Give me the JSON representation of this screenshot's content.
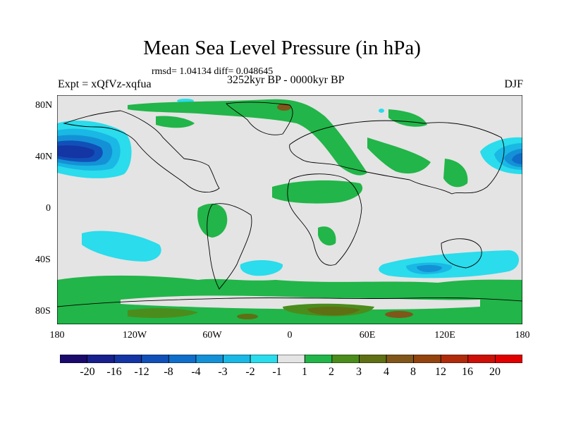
{
  "title": "Mean Sea Level Pressure (in hPa)",
  "stats": "rmsd= 1.04134 diff= 0.048645",
  "expt": "Expt = xQfVz-xqfua",
  "period": "3252kyr BP - 0000kyr BP",
  "season": "DJF",
  "lat_labels": [
    "80N",
    "40N",
    "0",
    "40S",
    "80S"
  ],
  "lon_labels": [
    "180",
    "120W",
    "60W",
    "0",
    "60E",
    "120E",
    "180"
  ],
  "legend": {
    "labels": [
      "-20",
      "-16",
      "-12",
      "-8",
      "-4",
      "-3",
      "-2",
      "-1",
      "1",
      "2",
      "3",
      "4",
      "8",
      "12",
      "16",
      "20"
    ],
    "colors": [
      "#1b0a6b",
      "#17208c",
      "#1435a4",
      "#1150b8",
      "#0f6ec9",
      "#1491d6",
      "#1ab8e4",
      "#2adcec",
      "#e4e4e4",
      "#22b549",
      "#4b8d1c",
      "#5f6f14",
      "#80561a",
      "#93440e",
      "#b02b0a",
      "#cc1008",
      "#e00000"
    ]
  },
  "colors": {
    "neutral": "#e4e4e4",
    "coast": "#000000"
  }
}
